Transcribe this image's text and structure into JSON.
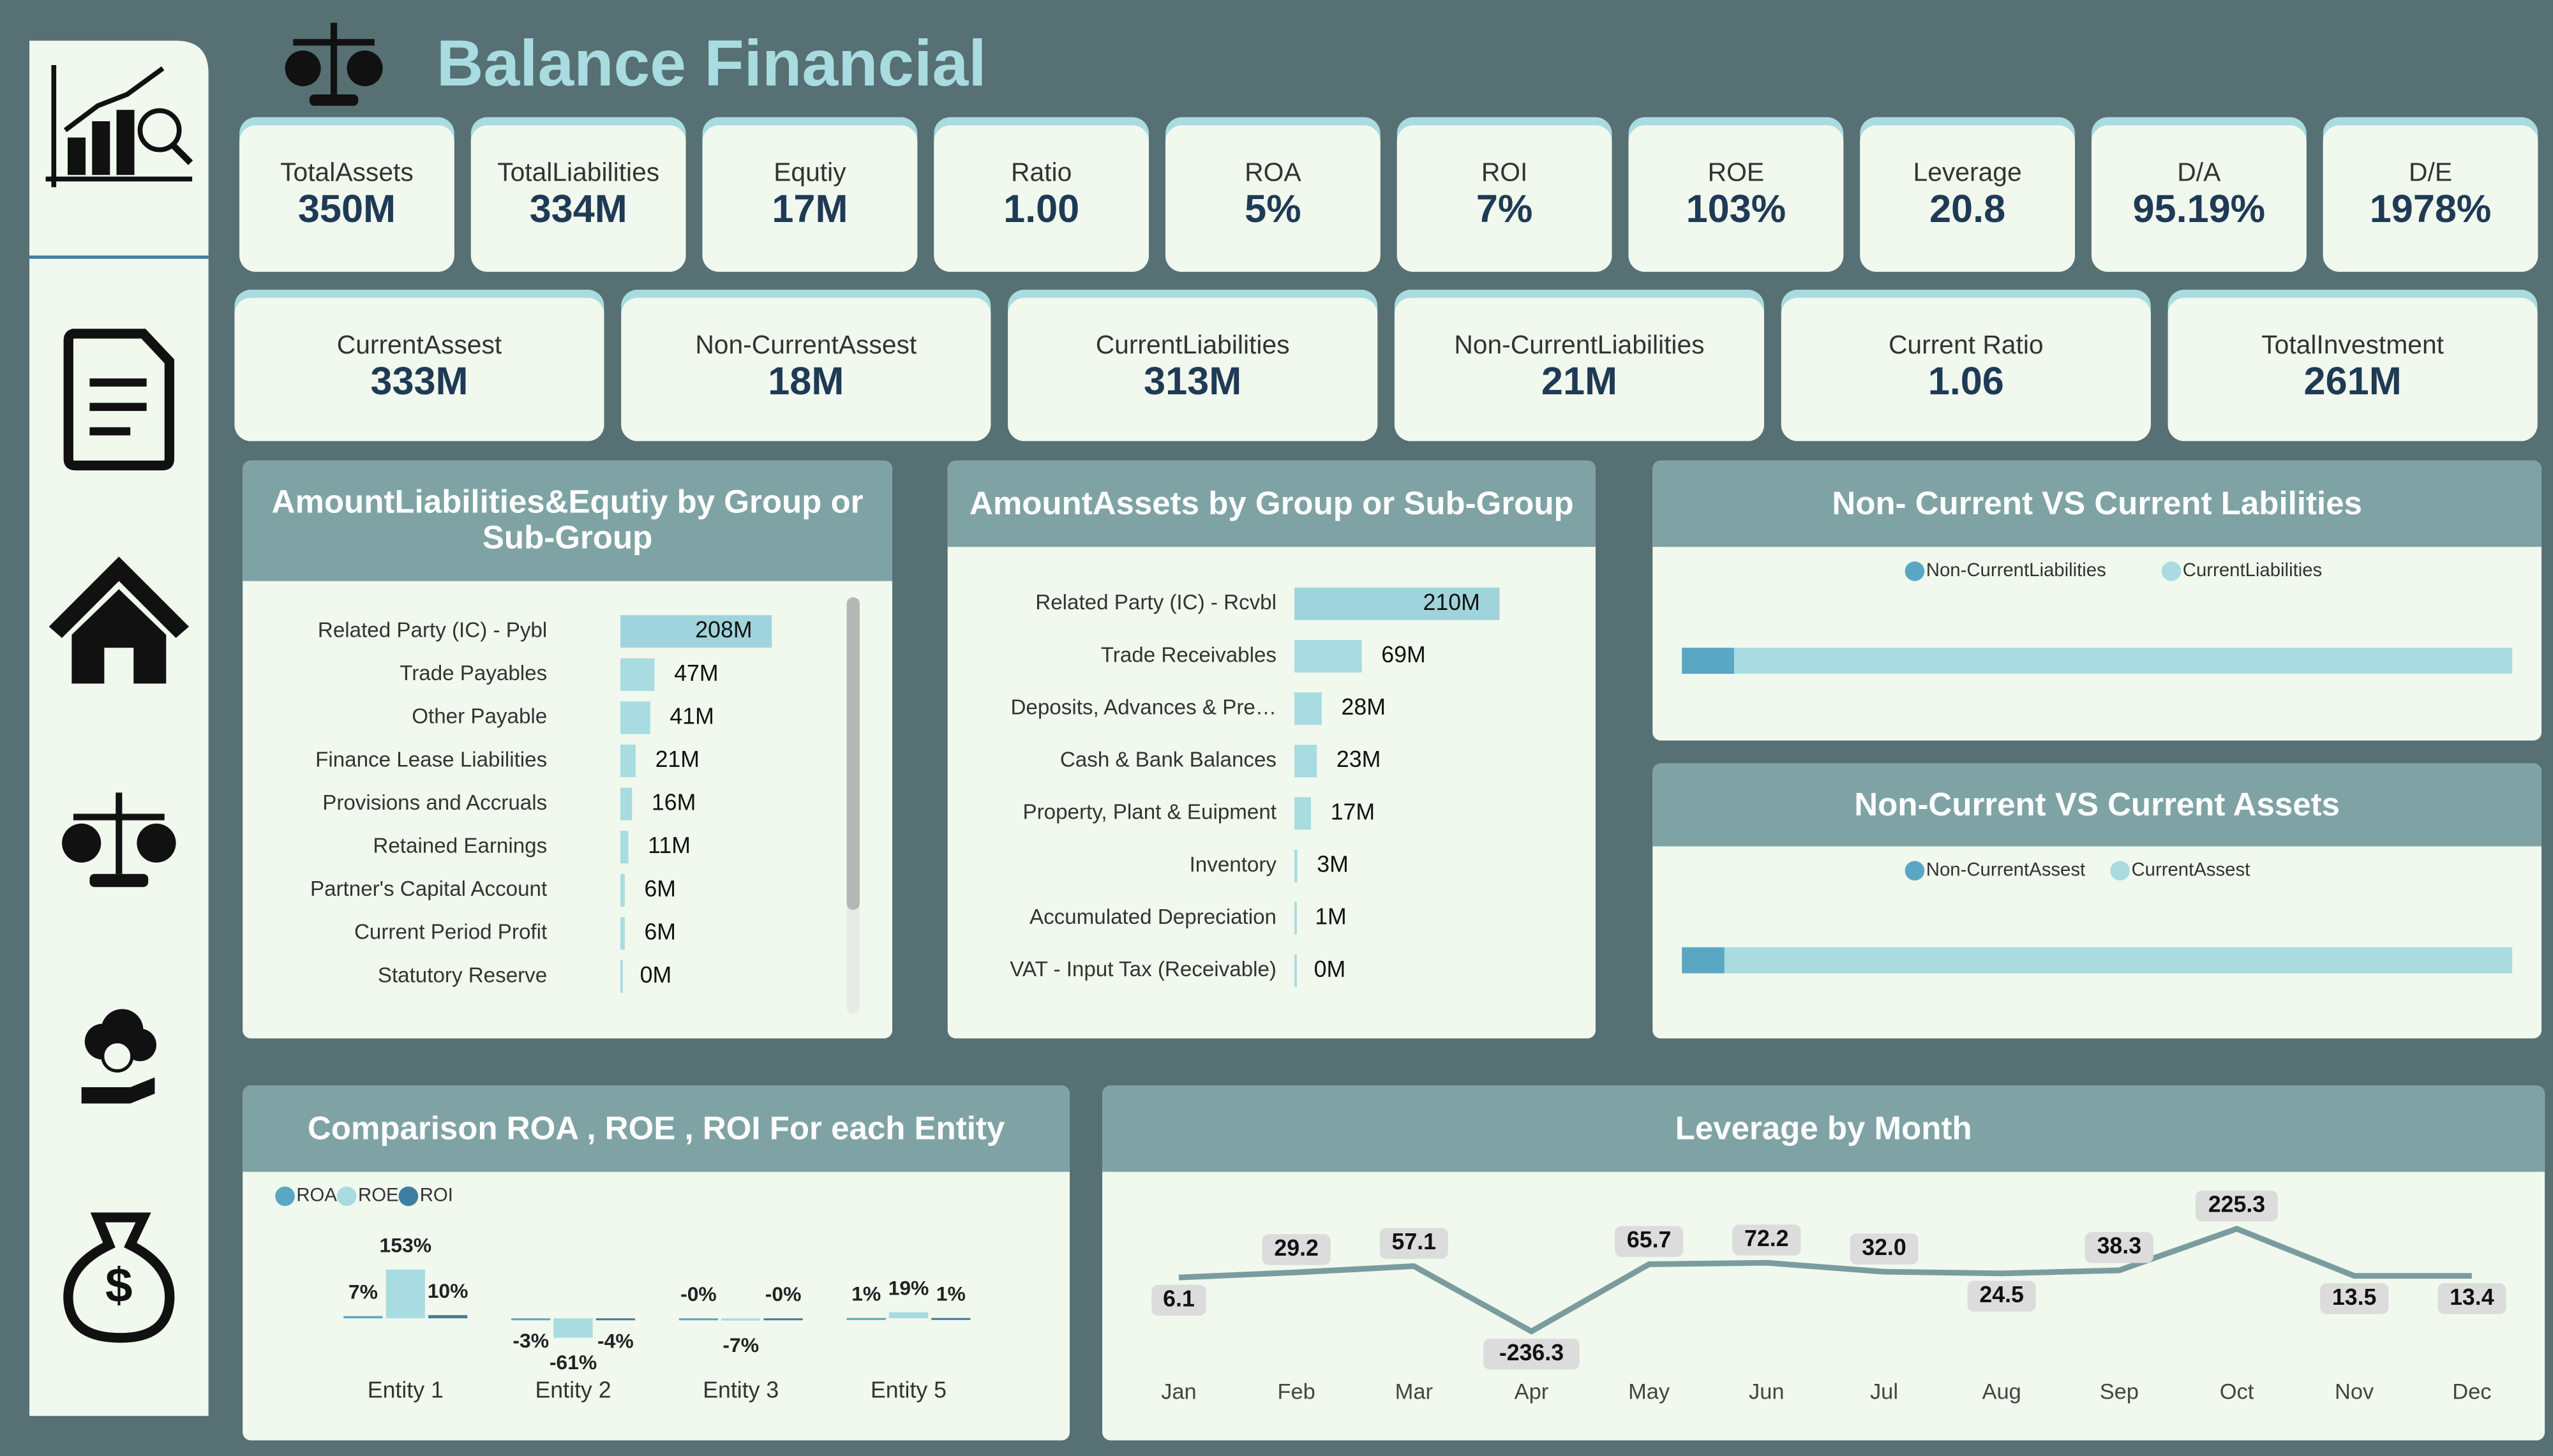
{
  "header": {
    "title": "Balance Financial"
  },
  "kpis": {
    "row1": [
      {
        "label": "TotalAssets",
        "value": "350M"
      },
      {
        "label": "TotalLiabilities",
        "value": "334M"
      },
      {
        "label": "Equtiy",
        "value": "17M"
      },
      {
        "label": "Ratio",
        "value": "1.00"
      },
      {
        "label": "ROA",
        "value": "5%"
      },
      {
        "label": "ROI",
        "value": "7%"
      },
      {
        "label": "ROE",
        "value": "103%"
      },
      {
        "label": "Leverage",
        "value": "20.8"
      },
      {
        "label": "D/A",
        "value": "95.19%"
      },
      {
        "label": "D/E",
        "value": "1978%"
      }
    ],
    "row2": [
      {
        "label": "CurrentAssest",
        "value": "333M"
      },
      {
        "label": "Non-CurrentAssest",
        "value": "18M"
      },
      {
        "label": "CurrentLiabilities",
        "value": "313M"
      },
      {
        "label": "Non-CurrentLiabilities",
        "value": "21M"
      },
      {
        "label": "Current Ratio",
        "value": "1.06"
      },
      {
        "label": "TotalInvestment",
        "value": "261M"
      }
    ]
  },
  "chart_data": [
    {
      "type": "hbar",
      "title": "AmountLiabilities&Equtiy by Group or Sub-Group",
      "categories": [
        "Related Party (IC) - Pybl",
        "Trade Payables",
        "Other Payable",
        "Finance Lease Liabilities",
        "Provisions and Accruals",
        "Retained Earnings",
        "Partner's Capital Account",
        "Current Period Profit",
        "Statutory Reserve"
      ],
      "values": [
        208,
        47,
        41,
        21,
        16,
        11,
        6,
        6,
        0
      ],
      "value_labels": [
        "208M",
        "47M",
        "41M",
        "21M",
        "16M",
        "11M",
        "6M",
        "6M",
        "0M"
      ],
      "color": "#a8dce0"
    },
    {
      "type": "hbar",
      "title": "AmountAssets by Group or Sub-Group",
      "categories": [
        "Related Party (IC) - Rcvbl",
        "Trade Receivables",
        "Deposits, Advances & Pre…",
        "Cash & Bank Balances",
        "Property, Plant & Euipment",
        "Inventory",
        "Accumulated Depreciation",
        "VAT - Input Tax (Receivable)"
      ],
      "values": [
        210,
        69,
        28,
        23,
        17,
        3,
        1,
        0
      ],
      "value_labels": [
        "210M",
        "69M",
        "28M",
        "23M",
        "17M",
        "3M",
        "1M",
        "0M"
      ],
      "color": "#a8dce0"
    },
    {
      "type": "stacked-hbar",
      "title": "Non- Current VS Current Labilities",
      "series": [
        {
          "name": "Non-CurrentLiabilities",
          "color": "#5aa7c4",
          "values": [
            21
          ]
        },
        {
          "name": "CurrentLiabilities",
          "color": "#a8dce0",
          "values": [
            313
          ]
        }
      ]
    },
    {
      "type": "stacked-hbar",
      "title": "Non-Current VS Current Assets",
      "series": [
        {
          "name": "Non-CurrentAssest",
          "color": "#5aa7c4",
          "values": [
            18
          ]
        },
        {
          "name": "CurrentAssest",
          "color": "#a8dce0",
          "values": [
            333
          ]
        }
      ]
    },
    {
      "type": "grouped-bar",
      "title": "Comparison ROA , ROE , ROI For each Entity",
      "categories": [
        "Entity 1",
        "Entity 2",
        "Entity 3",
        "Entity 5"
      ],
      "series": [
        {
          "name": "ROA",
          "color": "#5aa7c4",
          "values": [
            7,
            -3,
            0,
            1
          ],
          "value_labels": [
            "7%",
            "-3%",
            "-0%",
            "1%"
          ]
        },
        {
          "name": "ROE",
          "color": "#a8dce0",
          "values": [
            153,
            -61,
            -7,
            19
          ],
          "value_labels": [
            "153%",
            "-61%",
            "-7%",
            "19%"
          ]
        },
        {
          "name": "ROI",
          "color": "#3e7ea0",
          "values": [
            10,
            -4,
            0,
            1
          ],
          "value_labels": [
            "10%",
            "-4%",
            "-0%",
            "1%"
          ]
        }
      ]
    },
    {
      "type": "line",
      "title": "Leverage by Month",
      "categories": [
        "Jan",
        "Feb",
        "Mar",
        "Apr",
        "May",
        "Jun",
        "Jul",
        "Aug",
        "Sep",
        "Oct",
        "Nov",
        "Dec"
      ],
      "values": [
        6.1,
        29.2,
        57.1,
        -236.3,
        65.7,
        72.2,
        32.0,
        24.5,
        38.3,
        225.3,
        13.5,
        13.4
      ],
      "value_labels": [
        "6.1",
        "29.2",
        "57.1",
        "-236.3",
        "65.7",
        "72.2",
        "32.0",
        "24.5",
        "38.3",
        "225.3",
        "13.5",
        "13.4"
      ],
      "color": "#7a9c9e"
    }
  ]
}
